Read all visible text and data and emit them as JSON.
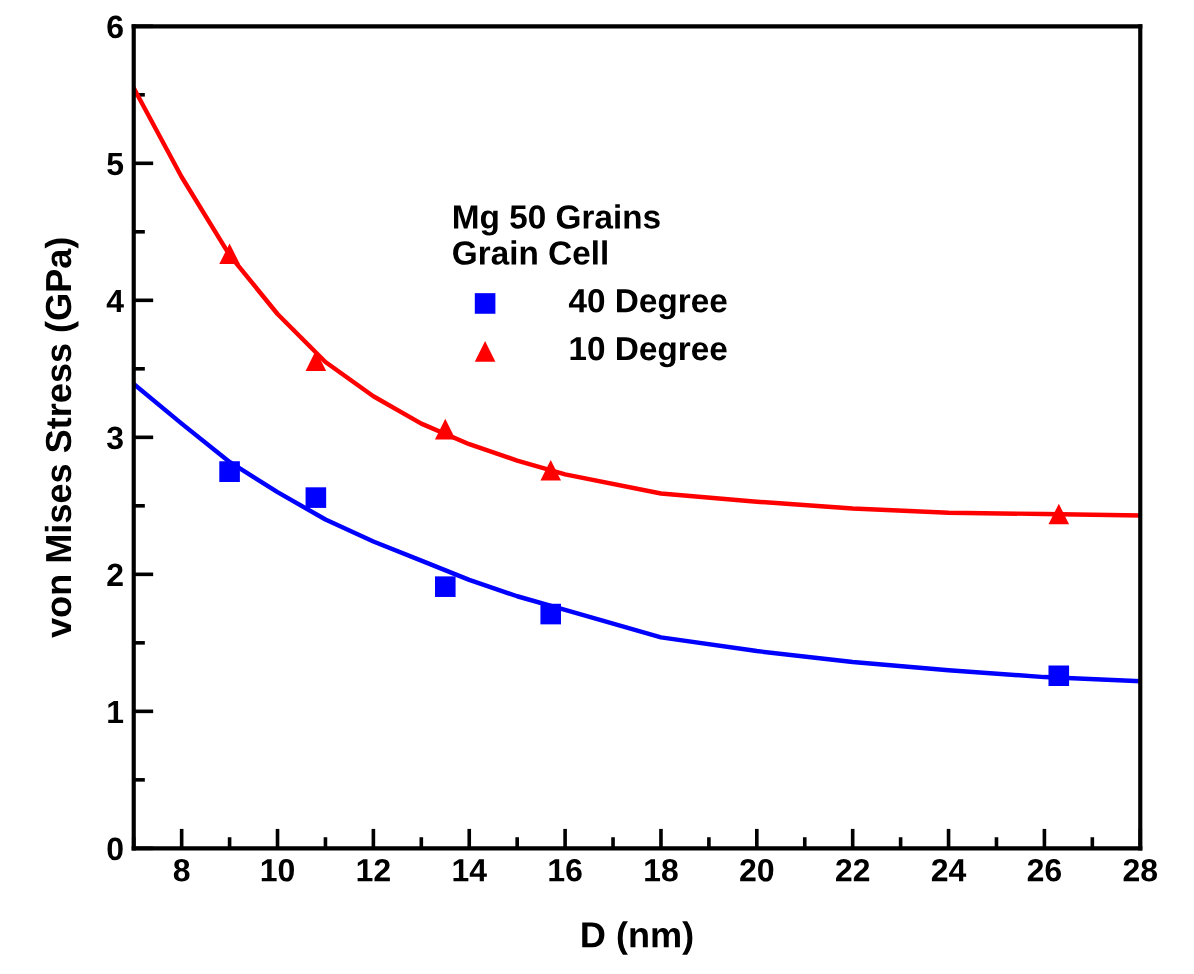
{
  "chart_data": {
    "type": "scatter",
    "xlabel": "D (nm)",
    "ylabel": "von Mises Stress (GPa)",
    "legend_title": "Mg 50 Grains\nGrain Cell",
    "legend": "top right",
    "grid": false,
    "xlim": [
      7,
      28
    ],
    "xticks": [
      8,
      10,
      12,
      14,
      16,
      18,
      20,
      22,
      24,
      26,
      28
    ],
    "ylim": [
      0,
      6
    ],
    "yticks": [
      0,
      1,
      2,
      3,
      4,
      5,
      6
    ],
    "series": [
      {
        "name": "40 Degree",
        "color": "#0000ff",
        "marker": "square",
        "x": [
          9,
          10.8,
          13.5,
          15.7,
          26.3
        ],
        "values": [
          2.75,
          2.56,
          1.91,
          1.71,
          1.26
        ]
      },
      {
        "name": "10 Degree",
        "color": "#ff0000",
        "marker": "triangle",
        "x": [
          9,
          10.8,
          13.5,
          15.7,
          26.3
        ],
        "values": [
          4.34,
          3.56,
          3.06,
          2.76,
          2.44
        ]
      },
      {
        "type": "line",
        "color": "#0000ff",
        "marker": "none",
        "x": [
          7,
          8,
          9,
          10,
          11,
          12,
          13,
          14,
          15,
          16,
          18,
          20,
          22,
          24,
          26,
          28
        ],
        "values": [
          3.39,
          3.1,
          2.82,
          2.6,
          2.4,
          2.24,
          2.1,
          1.96,
          1.84,
          1.74,
          1.54,
          1.44,
          1.36,
          1.3,
          1.25,
          1.22
        ]
      },
      {
        "type": "line",
        "color": "#ff0000",
        "marker": "none",
        "x": [
          7,
          8,
          9,
          10,
          11,
          12,
          13,
          14,
          15,
          16,
          18,
          20,
          22,
          24,
          26,
          28
        ],
        "values": [
          5.55,
          4.9,
          4.33,
          3.9,
          3.55,
          3.3,
          3.1,
          2.95,
          2.83,
          2.73,
          2.59,
          2.53,
          2.48,
          2.45,
          2.44,
          2.43
        ]
      }
    ]
  }
}
